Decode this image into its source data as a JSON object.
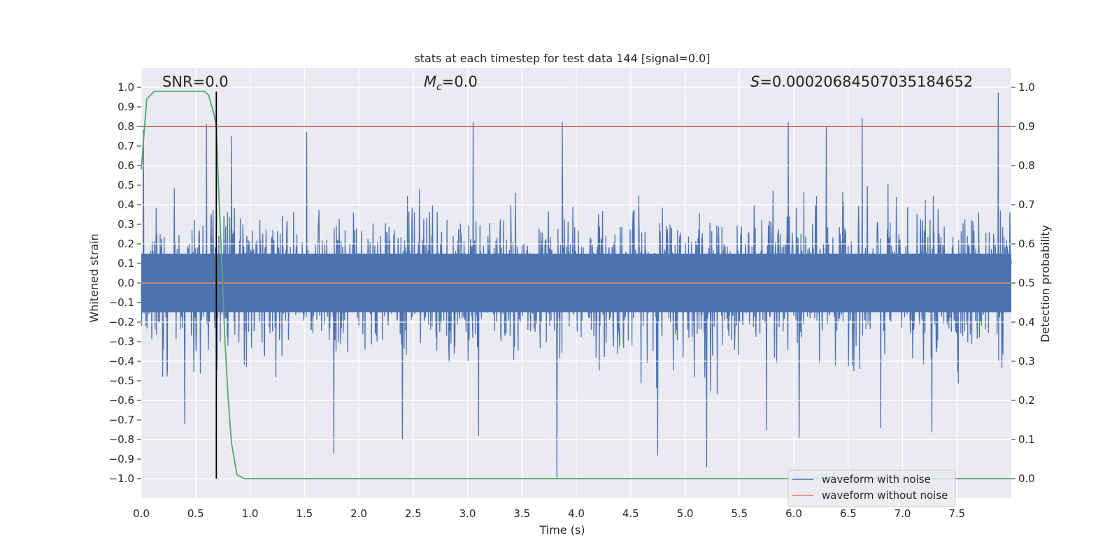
{
  "chart_data": {
    "type": "line",
    "title": "stats at each timestep for test data 144 [signal=0.0]",
    "xlabel": "Time (s)",
    "ylabel": "Whitened strain",
    "y2label": "Detection probability",
    "xlim": [
      0.0,
      8.0
    ],
    "ylim": [
      -1.1,
      1.1
    ],
    "y2lim": [
      -0.05,
      1.05
    ],
    "xticks": [
      "0.0",
      "0.5",
      "1.0",
      "1.5",
      "2.0",
      "2.5",
      "3.0",
      "3.5",
      "4.0",
      "4.5",
      "5.0",
      "5.5",
      "6.0",
      "6.5",
      "7.0",
      "7.5"
    ],
    "yticks": [
      "1.0",
      "0.9",
      "0.8",
      "0.7",
      "0.6",
      "0.5",
      "0.4",
      "0.3",
      "0.2",
      "0.1",
      "0.0",
      "−0.1",
      "−0.2",
      "−0.3",
      "−0.4",
      "−0.5",
      "−0.6",
      "−0.7",
      "−0.8",
      "−0.9",
      "−1.0"
    ],
    "y2ticks": [
      "1.0",
      "0.9",
      "0.8",
      "0.7",
      "0.6",
      "0.5",
      "0.4",
      "0.3",
      "0.2",
      "0.1",
      "0.0"
    ],
    "annotations": {
      "snr": "SNR=0.0",
      "mc_symbol": "M",
      "mc_sub": "c",
      "mc_value": "=0.0",
      "s_symbol": "S",
      "s_value": "=0.00020684507035184652"
    },
    "threshold": {
      "value": 0.9,
      "axis": "y2",
      "color": "#c44e52"
    },
    "marker_line": {
      "x": 0.69,
      "color": "#000000"
    },
    "legend": {
      "position": "lower-right",
      "entries": [
        {
          "label": "waveform with noise",
          "color": "#4c72b0"
        },
        {
          "label": "waveform without noise",
          "color": "#dd8452"
        }
      ]
    },
    "series": [
      {
        "name": "waveform with noise",
        "color": "#4c72b0",
        "axis": "y",
        "description": "dense whitened-strain noise",
        "envelope": {
          "typical_upper": 0.4,
          "typical_lower": -0.45,
          "dense_band": [
            -0.15,
            0.15
          ]
        },
        "peaks": [
          [
            0.02,
            0.78
          ],
          [
            0.6,
            0.81
          ],
          [
            0.83,
            0.75
          ],
          [
            1.52,
            0.77
          ],
          [
            3.05,
            0.82
          ],
          [
            3.82,
            0.78
          ],
          [
            3.87,
            0.82
          ],
          [
            5.95,
            0.82
          ],
          [
            6.3,
            0.8
          ],
          [
            6.63,
            0.84
          ],
          [
            7.88,
            0.97
          ]
        ],
        "troughs": [
          [
            0.4,
            -0.72
          ],
          [
            1.77,
            -0.87
          ],
          [
            2.4,
            -0.8
          ],
          [
            3.1,
            -0.78
          ],
          [
            3.82,
            -1.0
          ],
          [
            4.75,
            -0.88
          ],
          [
            5.2,
            -0.94
          ],
          [
            5.75,
            -0.75
          ],
          [
            6.05,
            -0.79
          ],
          [
            6.8,
            -0.74
          ],
          [
            7.27,
            -0.76
          ]
        ]
      },
      {
        "name": "waveform without noise",
        "color": "#dd8452",
        "axis": "y",
        "x": [
          0.0,
          8.0
        ],
        "values": [
          0.0,
          0.0
        ]
      },
      {
        "name": "detection probability",
        "color": "#55a868",
        "axis": "y2",
        "x": [
          0.0,
          0.05,
          0.12,
          0.2,
          0.3,
          0.4,
          0.5,
          0.58,
          0.62,
          0.67,
          0.69,
          0.71,
          0.74,
          0.77,
          0.8,
          0.83,
          0.88,
          0.95,
          1.2,
          2.0,
          4.0,
          6.0,
          8.0
        ],
        "values": [
          0.79,
          0.97,
          0.99,
          0.99,
          0.99,
          0.99,
          0.99,
          0.99,
          0.98,
          0.93,
          0.9,
          0.75,
          0.55,
          0.35,
          0.2,
          0.09,
          0.01,
          0.0,
          0.0,
          0.0,
          0.0,
          0.0,
          0.0
        ]
      }
    ]
  }
}
